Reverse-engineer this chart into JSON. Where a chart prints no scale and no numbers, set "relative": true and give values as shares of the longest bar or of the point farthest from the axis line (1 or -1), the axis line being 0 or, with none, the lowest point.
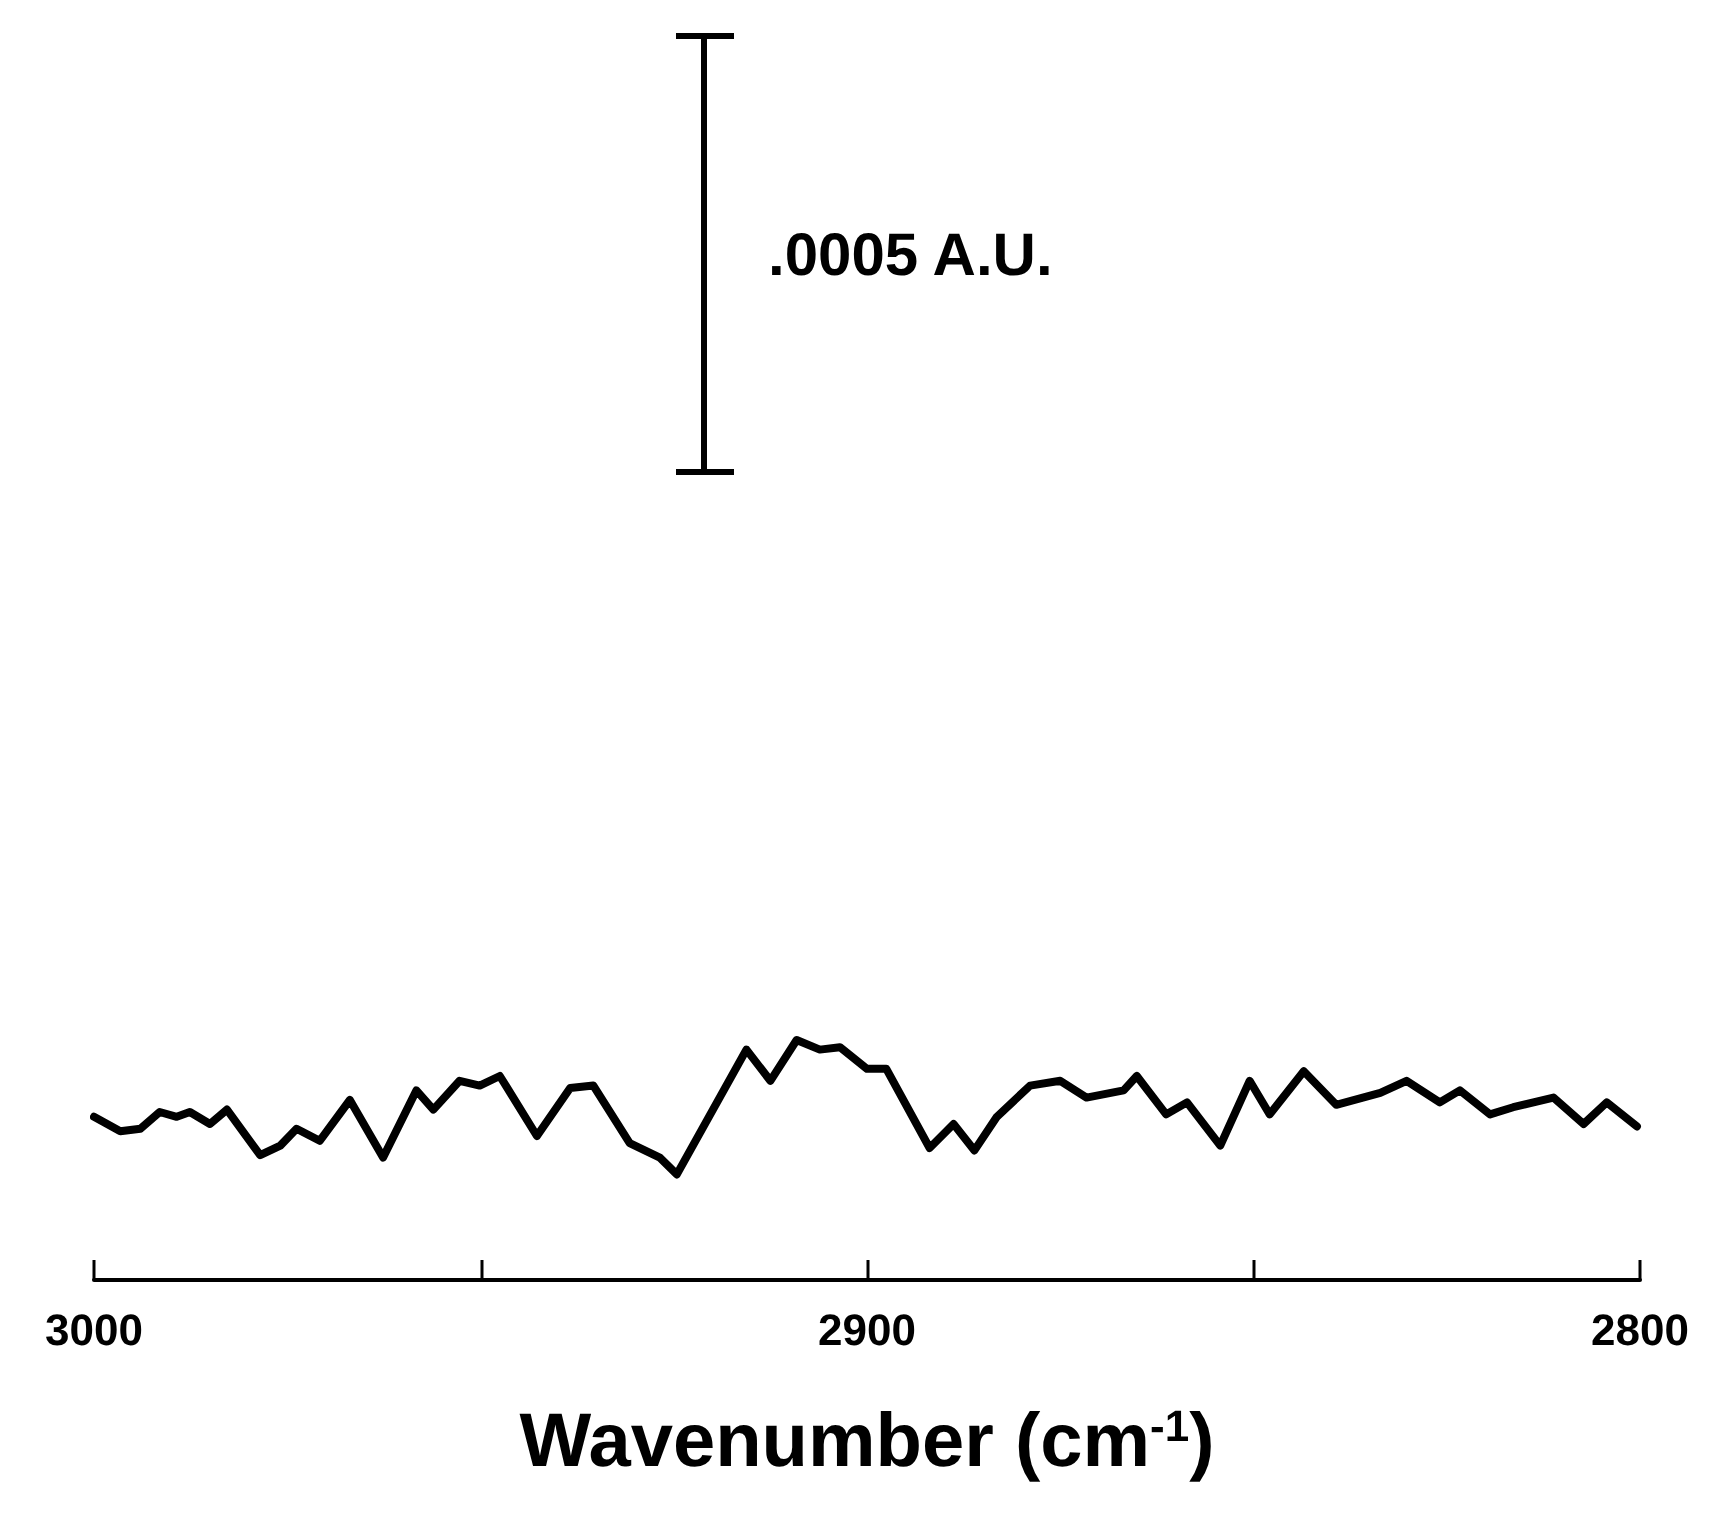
{
  "chart_data": {
    "type": "line",
    "xlabel": "Wavenumber (cm$^{-1}$)",
    "annotations": [
      ".0005 A.U."
    ],
    "relative": true,
    "tick_labels": "x",
    "marker": "none",
    "line_style": "solid",
    "color": "#000000",
    "xlim": [
      3000,
      2800
    ],
    "xticks": [
      3000,
      {
        "value": 2950,
        "label": null
      },
      2900,
      {
        "value": 2850,
        "label": null
      },
      2800
    ],
    "x": [
      3000,
      2996.6,
      2994,
      2991.5,
      2989.3,
      2987.6,
      2985,
      2982.8,
      2978.5,
      2975.9,
      2973.8,
      2970.8,
      2966.9,
      2962.6,
      2958.3,
      2956.1,
      2952.7,
      2950.1,
      2947.5,
      2942.7,
      2938.4,
      2935.4,
      2930.7,
      2926.8,
      2924.6,
      2915.6,
      2912.5,
      2909.1,
      2906.1,
      2903.5,
      2900,
      2897.5,
      2891.9,
      2888.8,
      2886.1,
      2883.2,
      2878.9,
      2875,
      2871.6,
      2866.8,
      2865.1,
      2861.3,
      2858.6,
      2854.3,
      2850.5,
      2847.9,
      2843.5,
      2839.3,
      2833.6,
      2830.2,
      2825.9,
      2823.3,
      2819.4,
      2816.4,
      2811.2,
      2807.3,
      2804.3,
      2800.4
    ],
    "values": [
      0.68,
      0.62,
      0.63,
      0.7,
      0.68,
      0.7,
      0.65,
      0.71,
      0.52,
      0.56,
      0.63,
      0.58,
      0.75,
      0.51,
      0.79,
      0.71,
      0.83,
      0.81,
      0.85,
      0.6,
      0.8,
      0.81,
      0.57,
      0.51,
      0.44,
      0.96,
      0.83,
      1.0,
      0.96,
      0.97,
      0.88,
      0.88,
      0.55,
      0.65,
      0.54,
      0.68,
      0.81,
      0.83,
      0.76,
      0.79,
      0.85,
      0.69,
      0.74,
      0.56,
      0.83,
      0.69,
      0.87,
      0.73,
      0.78,
      0.83,
      0.74,
      0.79,
      0.69,
      0.72,
      0.76,
      0.65,
      0.74,
      0.64
    ]
  }
}
